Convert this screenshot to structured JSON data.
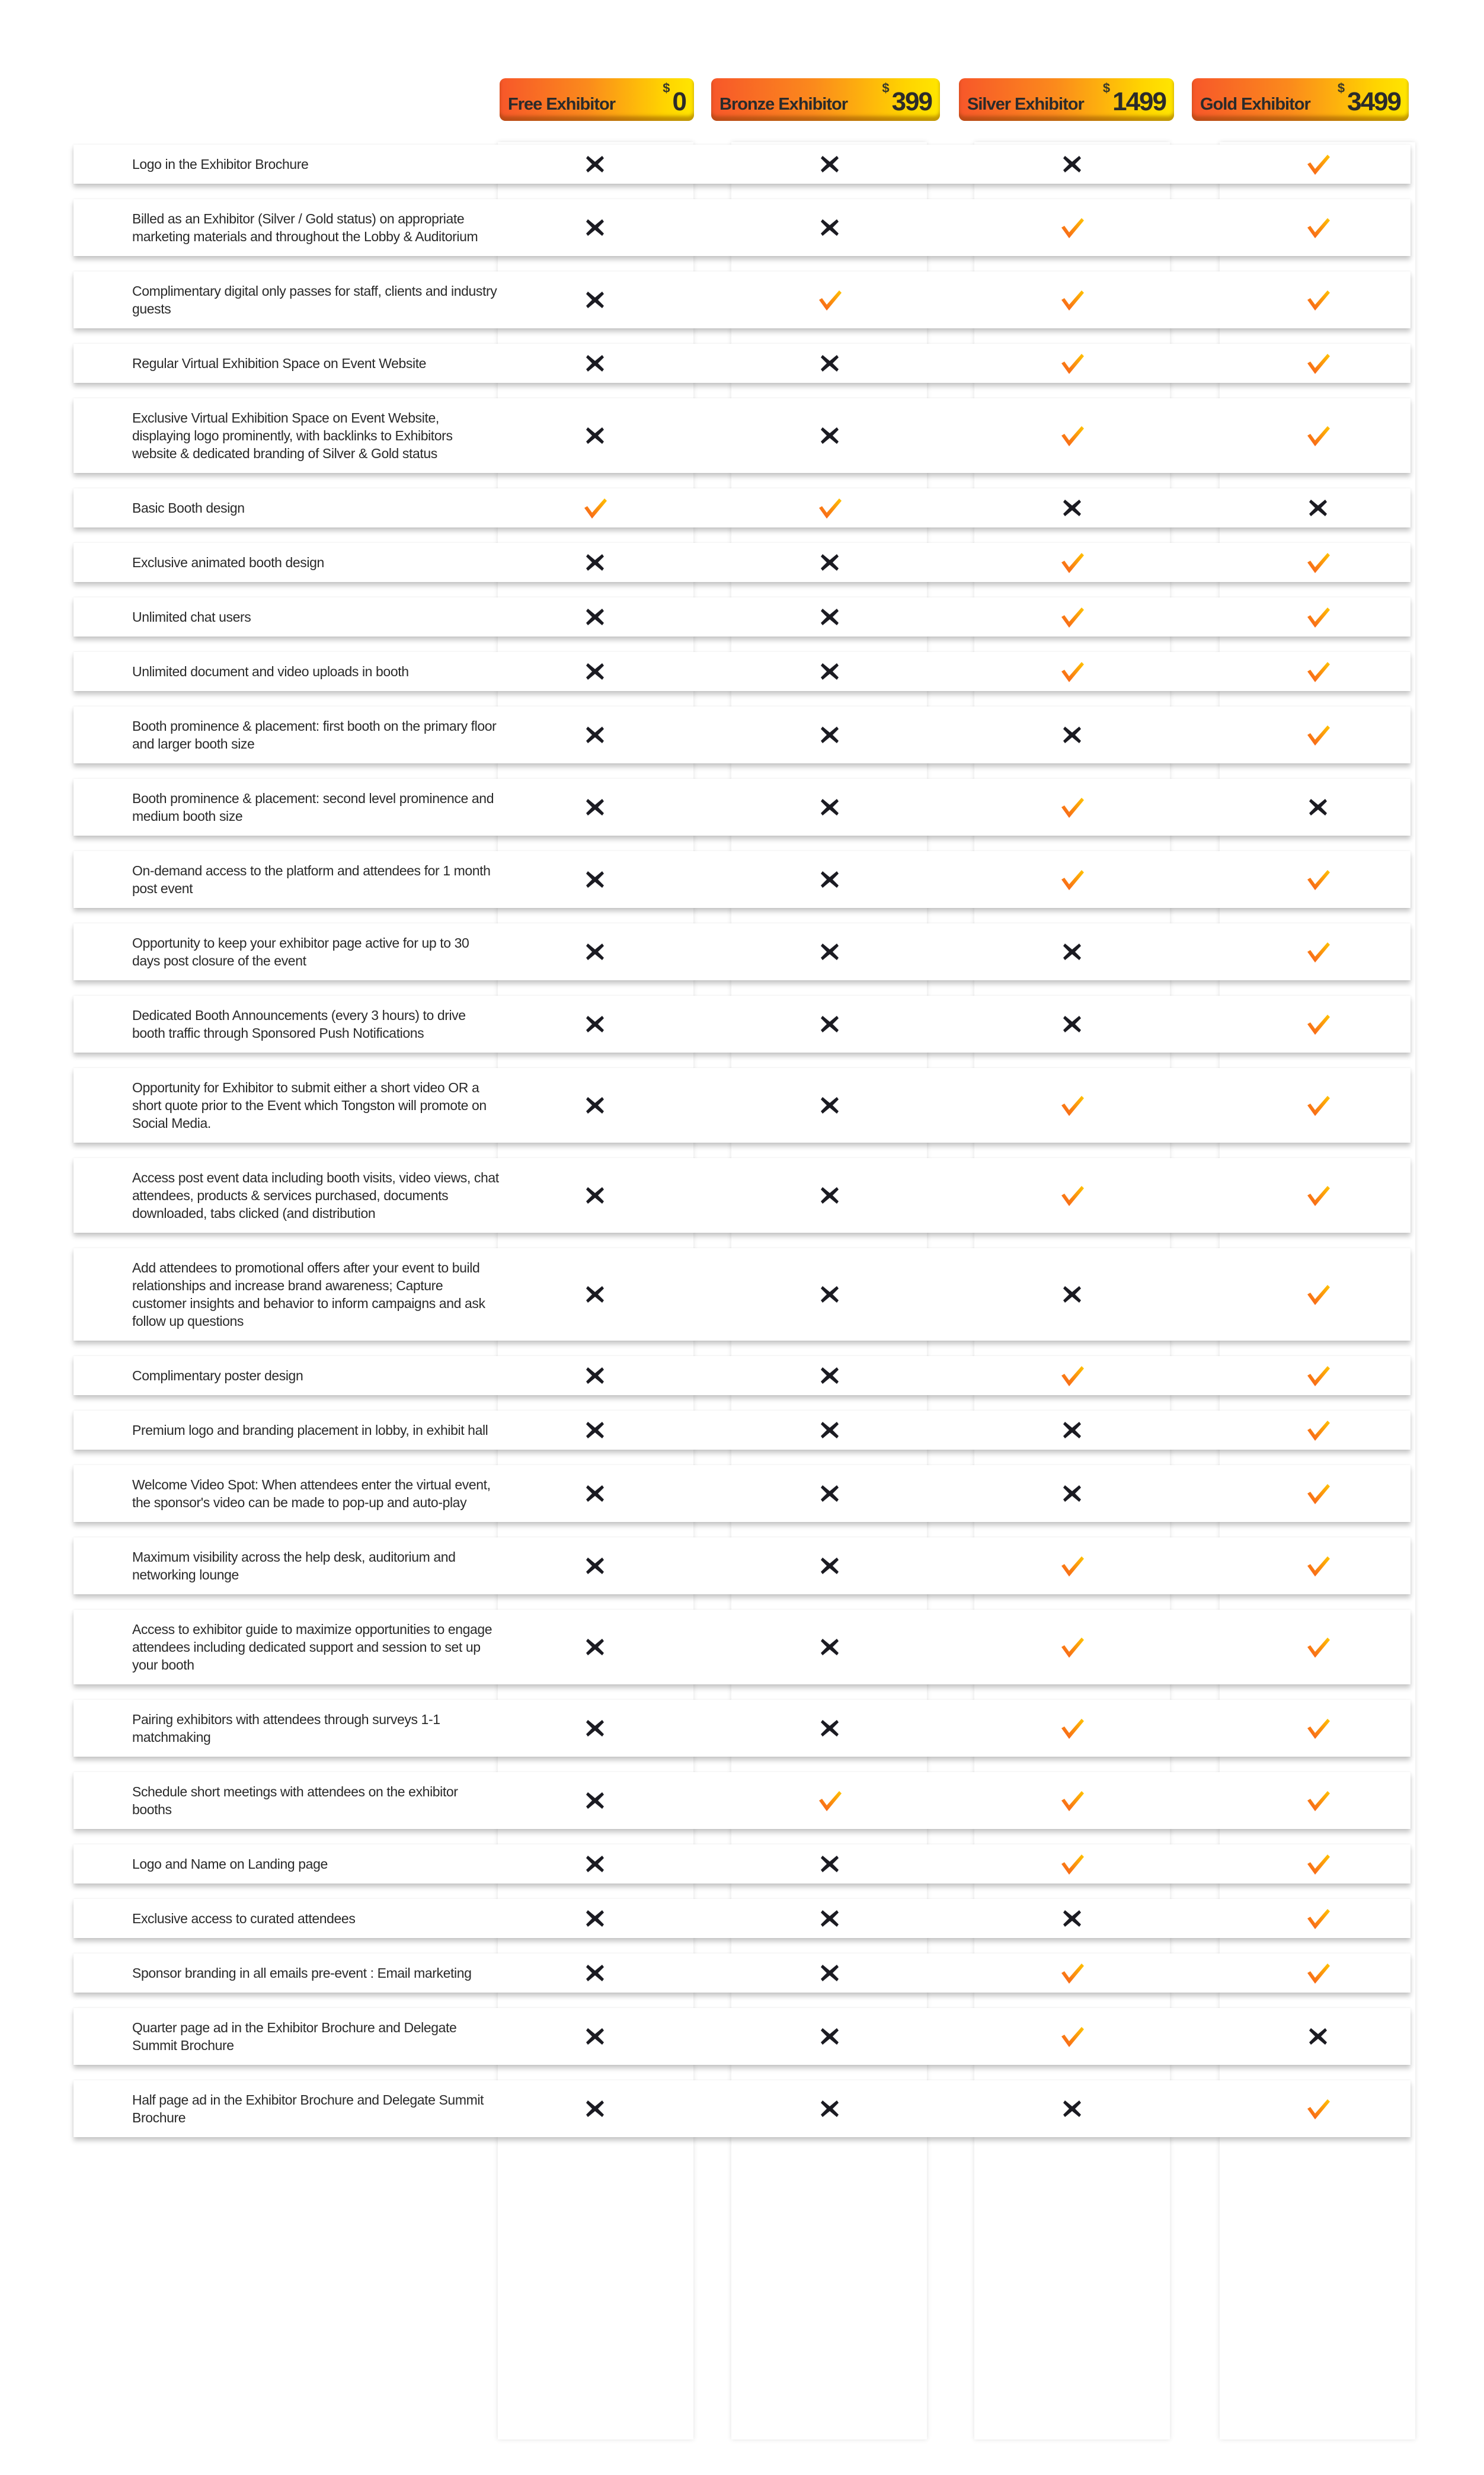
{
  "tiers": [
    {
      "name": "Free Exhibitor",
      "currency": "$",
      "price": "0"
    },
    {
      "name": "Bronze Exhibitor",
      "currency": "$",
      "price": "399"
    },
    {
      "name": "Silver Exhibitor",
      "currency": "$",
      "price": "1499"
    },
    {
      "name": "Gold Exhibitor",
      "currency": "$",
      "price": "3499"
    }
  ],
  "colors": {
    "check": "#f7931e",
    "cross": "#1b1b22",
    "header_start": "#f7572a",
    "header_end": "#ffe600"
  },
  "features": [
    {
      "label": "Logo in the Exhibitor Brochure",
      "values": [
        false,
        false,
        false,
        true
      ]
    },
    {
      "label": "Billed as an Exhibitor (Silver / Gold status) on appropriate marketing materials and throughout the Lobby & Auditorium",
      "values": [
        false,
        false,
        true,
        true
      ]
    },
    {
      "label": "Complimentary digital only passes for staff, clients and industry guests",
      "values": [
        false,
        true,
        true,
        true
      ]
    },
    {
      "label": "Regular Virtual Exhibition Space on Event Website",
      "values": [
        false,
        false,
        true,
        true
      ]
    },
    {
      "label": "Exclusive Virtual Exhibition Space on Event Website, displaying logo prominently, with backlinks to Exhibitors website & dedicated branding of Silver & Gold status",
      "values": [
        false,
        false,
        true,
        true
      ]
    },
    {
      "label": "Basic Booth design",
      "values": [
        true,
        true,
        false,
        false
      ]
    },
    {
      "label": "Exclusive animated booth design",
      "values": [
        false,
        false,
        true,
        true
      ]
    },
    {
      "label": "Unlimited chat users",
      "values": [
        false,
        false,
        true,
        true
      ]
    },
    {
      "label": "Unlimited document and video uploads in booth",
      "values": [
        false,
        false,
        true,
        true
      ]
    },
    {
      "label": "Booth prominence & placement: first booth on the primary floor and larger booth size",
      "values": [
        false,
        false,
        false,
        true
      ]
    },
    {
      "label": "Booth prominence & placement: second level prominence and medium booth size",
      "values": [
        false,
        false,
        true,
        false
      ]
    },
    {
      "label": "On-demand access to the platform and attendees for 1 month post event",
      "values": [
        false,
        false,
        true,
        true
      ]
    },
    {
      "label": "Opportunity to keep your exhibitor page active for up to 30 days post closure of the event",
      "values": [
        false,
        false,
        false,
        true
      ]
    },
    {
      "label": "Dedicated Booth Announcements (every 3 hours) to drive booth traffic through Sponsored Push Notifications",
      "values": [
        false,
        false,
        false,
        true
      ]
    },
    {
      "label": "Opportunity for Exhibitor to submit either a short video OR a short quote prior to the Event which Tongston will promote on Social Media.",
      "values": [
        false,
        false,
        true,
        true
      ]
    },
    {
      "label": "Access post event data including booth visits, video views, chat attendees, products & services purchased, documents downloaded, tabs clicked (and distribution",
      "values": [
        false,
        false,
        true,
        true
      ]
    },
    {
      "label": "Add attendees to promotional offers after your event to build relationships and increase brand awareness; Capture customer insights and behavior to inform campaigns and ask follow up questions",
      "values": [
        false,
        false,
        false,
        true
      ]
    },
    {
      "label": "Complimentary poster design",
      "values": [
        false,
        false,
        true,
        true
      ]
    },
    {
      "label": "Premium logo and branding placement in lobby, in exhibit hall",
      "values": [
        false,
        false,
        false,
        true
      ]
    },
    {
      "label": "Welcome Video Spot: When attendees enter the virtual event, the sponsor's video can be made to pop-up and auto-play",
      "values": [
        false,
        false,
        false,
        true
      ]
    },
    {
      "label": "Maximum visibility across the help desk, auditorium and networking lounge",
      "values": [
        false,
        false,
        true,
        true
      ]
    },
    {
      "label": "Access to exhibitor guide to maximize opportunities to engage attendees including dedicated support and session to set up your booth",
      "values": [
        false,
        false,
        true,
        true
      ]
    },
    {
      "label": "Pairing exhibitors with attendees through surveys 1-1 matchmaking",
      "values": [
        false,
        false,
        true,
        true
      ]
    },
    {
      "label": "Schedule short meetings with attendees on the exhibitor booths",
      "values": [
        false,
        true,
        true,
        true
      ]
    },
    {
      "label": "Logo and Name on Landing page",
      "values": [
        false,
        false,
        true,
        true
      ]
    },
    {
      "label": "Exclusive access to curated attendees",
      "values": [
        false,
        false,
        false,
        true
      ]
    },
    {
      "label": "Sponsor branding in all emails pre-event : Email marketing",
      "values": [
        false,
        false,
        true,
        true
      ]
    },
    {
      "label": "Quarter page ad in the Exhibitor Brochure and Delegate  Summit Brochure",
      "values": [
        false,
        false,
        true,
        false
      ]
    },
    {
      "label": "Half page ad in the Exhibitor Brochure and Delegate Summit Brochure",
      "values": [
        false,
        false,
        false,
        true
      ]
    }
  ]
}
